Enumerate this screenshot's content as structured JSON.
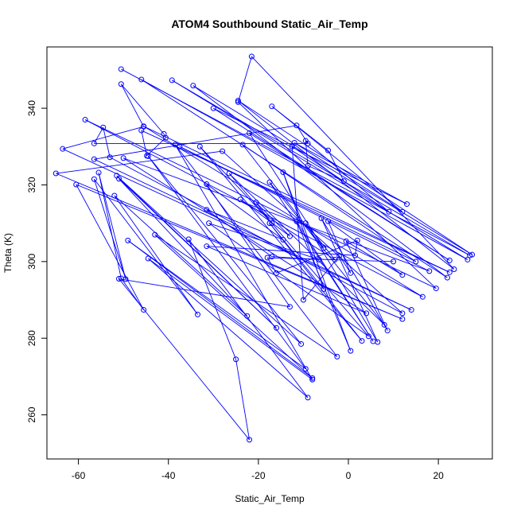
{
  "chart_data": {
    "type": "line",
    "title": "ATOM4 Southbound Static_Air_Temp",
    "xlabel": "Static_Air_Temp",
    "ylabel": "Theta (K)",
    "xlim": [
      -67,
      32
    ],
    "ylim": [
      248.5,
      356
    ],
    "xticks": [
      "-60",
      "-40",
      "-20",
      "0",
      "20"
    ],
    "yticks": [
      "260",
      "280",
      "300",
      "320",
      "340"
    ],
    "grid": false,
    "line_color": "#0000ff",
    "marker": "open-circle",
    "series": [
      {
        "points": [
          [
            -50.5,
            350.2
          ],
          [
            27.0,
            301.6
          ],
          [
            -39.2,
            347.3
          ],
          [
            26.5,
            300.5
          ],
          [
            -46.0,
            347.5
          ],
          [
            22.0,
            295.8
          ],
          [
            -34.5,
            345.9
          ],
          [
            27.5,
            301.8
          ],
          [
            -24.5,
            342.0
          ],
          [
            23.5,
            298.0
          ],
          [
            -21.5,
            353.5
          ],
          [
            -24.5,
            341.6
          ],
          [
            19.5,
            293.0
          ],
          [
            -58.5,
            337.0
          ],
          [
            16.5,
            290.8
          ],
          [
            -45.5,
            335.3
          ],
          [
            22.5,
            297.2
          ],
          [
            -46.0,
            334.2
          ],
          [
            -44.8,
            327.6
          ],
          [
            -40.6,
            332.3
          ],
          [
            -41.0,
            333.3
          ],
          [
            -50.5,
            346.3
          ],
          [
            -45.5,
            335.2
          ],
          [
            -63.5,
            329.4
          ],
          [
            14.0,
            287.4
          ],
          [
            -56.5,
            326.7
          ],
          [
            -11.5,
            335.5
          ],
          [
            -9.0,
            330.8
          ],
          [
            -56.5,
            330.8
          ],
          [
            -54.5,
            335.0
          ],
          [
            -53.0,
            327.2
          ],
          [
            12.0,
            286.5
          ],
          [
            -28.0,
            328.8
          ],
          [
            -65.0,
            323.0
          ],
          [
            12.0,
            285.0
          ],
          [
            -60.5,
            320.1
          ],
          [
            -45.5,
            287.4
          ],
          [
            -50.5,
            295.6
          ],
          [
            -55.5,
            323.2
          ],
          [
            -49.5,
            295.4
          ],
          [
            -56.5,
            321.5
          ],
          [
            -33.5,
            286.2
          ],
          [
            -52.0,
            317.2
          ],
          [
            -22.5,
            285.8
          ],
          [
            -51.0,
            321.6
          ],
          [
            -16.0,
            282.7
          ],
          [
            -51.5,
            322.4
          ],
          [
            -10.5,
            278.5
          ],
          [
            -44.5,
            327.5
          ],
          [
            -9.5,
            272.0
          ],
          [
            -49.0,
            305.5
          ],
          [
            -8.0,
            269.6
          ],
          [
            -43.0,
            307.0
          ],
          [
            -2.5,
            275.2
          ],
          [
            -38.5,
            330.5
          ],
          [
            -8.0,
            269.2
          ],
          [
            -44.5,
            300.8
          ],
          [
            -9.0,
            264.5
          ],
          [
            -35.5,
            305.8
          ],
          [
            -25.0,
            274.5
          ],
          [
            -22.0,
            253.5
          ],
          [
            -51.0,
            295.5
          ],
          [
            -13.0,
            288.2
          ],
          [
            -31.5,
            320.2
          ],
          [
            -14.5,
            305.7
          ],
          [
            -31.5,
            313.5
          ],
          [
            -17.0,
            301.3
          ],
          [
            -6.5,
            300.5
          ],
          [
            -31.0,
            310.0
          ],
          [
            4.5,
            280.5
          ],
          [
            -26.5,
            323.0
          ],
          [
            8.0,
            283.5
          ],
          [
            -17.5,
            320.7
          ],
          [
            5.5,
            279.2
          ],
          [
            -11.5,
            310.5
          ],
          [
            0.5,
            276.7
          ],
          [
            -14.5,
            323.3
          ],
          [
            -5.5,
            292.8
          ],
          [
            -17.5,
            310.0
          ],
          [
            3.0,
            279.3
          ],
          [
            -33.0,
            330.0
          ],
          [
            -17.0,
            310.0
          ],
          [
            -20.5,
            315.4
          ],
          [
            -13.0,
            306.6
          ],
          [
            -24.0,
            316.2
          ],
          [
            -3.0,
            300.5
          ],
          [
            -9.5,
            310.0
          ],
          [
            6.5,
            279.0
          ],
          [
            -6.0,
            311.3
          ],
          [
            8.7,
            282.0
          ],
          [
            -0.5,
            305.3
          ],
          [
            12.0,
            296.5
          ],
          [
            -4.5,
            310.5
          ],
          [
            0.5,
            297.0
          ],
          [
            -2.0,
            301.5
          ],
          [
            -10.0,
            290.0
          ],
          [
            -12.5,
            330.0
          ],
          [
            9.0,
            313.0
          ],
          [
            -9.5,
            331.5
          ],
          [
            -9.0,
            325.0
          ],
          [
            -1.0,
            321.0
          ],
          [
            -4.5,
            329.0
          ],
          [
            -17.0,
            340.5
          ],
          [
            12.0,
            313.0
          ],
          [
            -12.0,
            331.0
          ],
          [
            13.0,
            315.0
          ],
          [
            -30.0,
            340.0
          ],
          [
            22.5,
            300.3
          ],
          [
            -22.0,
            333.5
          ],
          [
            -5.5,
            303.5
          ],
          [
            -23.5,
            330.5
          ],
          [
            15.0,
            300.0
          ],
          [
            -37.5,
            330.0
          ],
          [
            18.0,
            297.5
          ],
          [
            -50.0,
            327.0
          ],
          [
            4.0,
            286.5
          ],
          [
            -31.5,
            304.0
          ],
          [
            1.5,
            301.6
          ],
          [
            2.0,
            305.5
          ],
          [
            -16.0,
            297.0
          ],
          [
            -18.0,
            301.0
          ],
          [
            10.0,
            300.0
          ]
        ]
      }
    ]
  }
}
